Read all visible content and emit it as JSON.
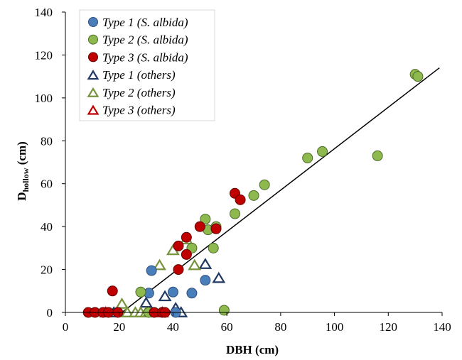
{
  "chart_data": {
    "type": "scatter",
    "xlabel": "DBH (cm)",
    "ylabel": {
      "main": "D",
      "subscript": "hollow",
      "suffix": " (cm)"
    },
    "xlim": [
      0,
      140
    ],
    "ylim": [
      0,
      140
    ],
    "xticks": [
      "0",
      "20",
      "40",
      "60",
      "80",
      "100",
      "120",
      "140"
    ],
    "yticks": [
      "0",
      "20",
      "40",
      "60",
      "80",
      "100",
      "120",
      "140"
    ],
    "legend_position": "top-left",
    "grid": false,
    "trendline": {
      "x": [
        21,
        139
      ],
      "y": [
        0,
        114
      ]
    },
    "series": [
      {
        "name": "Type 1 (S. albida)",
        "marker": "circle",
        "color": "#4a7ebb",
        "edge": "#2f4f7a",
        "points": [
          [
            31,
            9
          ],
          [
            32,
            19.5
          ],
          [
            40,
            9.5
          ],
          [
            41,
            0
          ],
          [
            47,
            9
          ],
          [
            52,
            15
          ]
        ]
      },
      {
        "name": "Type 2 (S. albida)",
        "marker": "circle",
        "color": "#8db94e",
        "edge": "#4e6b26",
        "points": [
          [
            28,
            9.5
          ],
          [
            31,
            0
          ],
          [
            47,
            30
          ],
          [
            52,
            43.5
          ],
          [
            53,
            38.5
          ],
          [
            55,
            30
          ],
          [
            56,
            40
          ],
          [
            59,
            1
          ],
          [
            63,
            46
          ],
          [
            70,
            54.5
          ],
          [
            74,
            59.5
          ],
          [
            90,
            72
          ],
          [
            95.5,
            75
          ],
          [
            116,
            73
          ],
          [
            130,
            111
          ],
          [
            131,
            110
          ]
        ]
      },
      {
        "name": "Type 3 (S. albida)",
        "marker": "circle",
        "color": "#c00000",
        "edge": "#600000",
        "points": [
          [
            8.5,
            0
          ],
          [
            11,
            0
          ],
          [
            14,
            0
          ],
          [
            16,
            0
          ],
          [
            17.5,
            10
          ],
          [
            19.5,
            0
          ],
          [
            33,
            0
          ],
          [
            36,
            0
          ],
          [
            37,
            0
          ],
          [
            42,
            31
          ],
          [
            42,
            20
          ],
          [
            45,
            35
          ],
          [
            45,
            27
          ],
          [
            50,
            40
          ],
          [
            56,
            39
          ],
          [
            63,
            55.5
          ],
          [
            65,
            52.5
          ]
        ]
      },
      {
        "name": "Type 1 (others)",
        "marker": "triangle",
        "color": "#1f3864",
        "points": [
          [
            18,
            0
          ],
          [
            30,
            4.5
          ],
          [
            37,
            7.5
          ],
          [
            41,
            2
          ],
          [
            43,
            0
          ],
          [
            52,
            22.5
          ],
          [
            57,
            16
          ]
        ]
      },
      {
        "name": "Type 2 (others)",
        "marker": "triangle",
        "color": "#77933c",
        "points": [
          [
            21,
            4
          ],
          [
            23,
            0
          ],
          [
            26,
            0
          ],
          [
            28,
            0
          ],
          [
            30,
            0
          ],
          [
            31,
            0
          ],
          [
            35,
            22
          ],
          [
            40,
            29
          ],
          [
            45,
            34
          ],
          [
            48,
            22
          ]
        ]
      },
      {
        "name": "Type 3 (others)",
        "marker": "triangle",
        "color": "#c00000",
        "points": [
          [
            15,
            0
          ],
          [
            36,
            0
          ]
        ]
      }
    ]
  }
}
